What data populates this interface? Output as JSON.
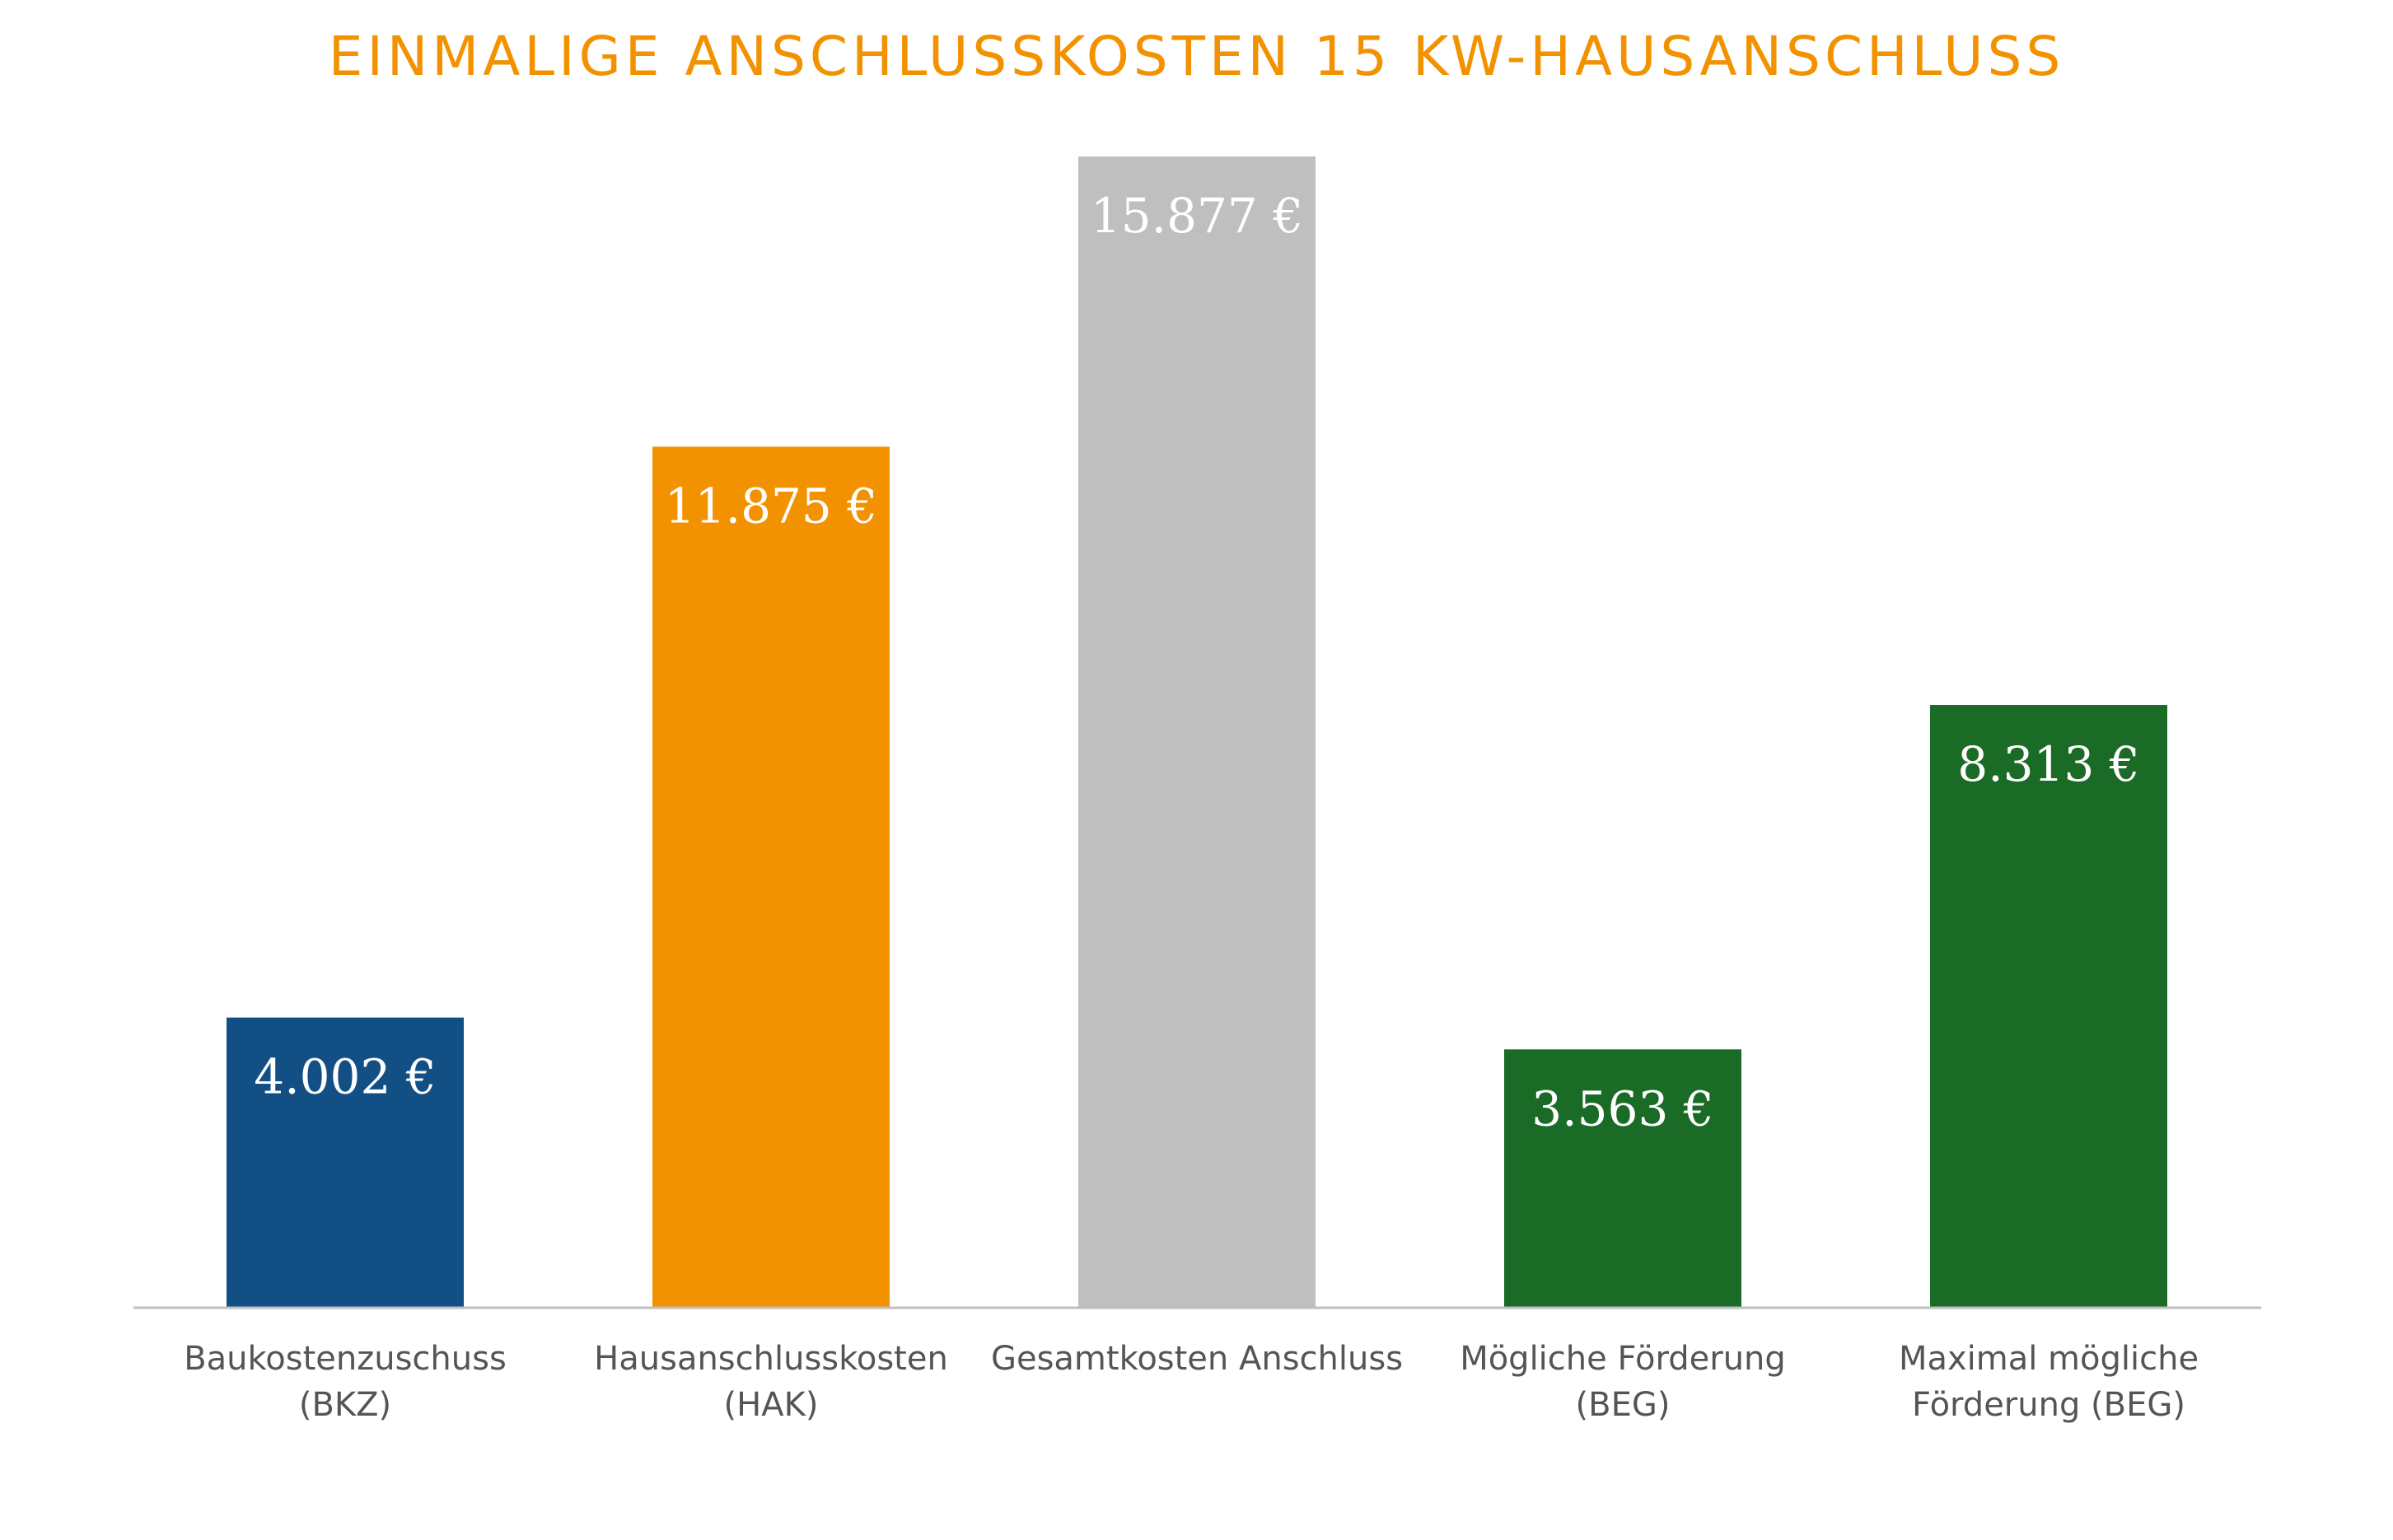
{
  "chart_data": {
    "type": "bar",
    "title": "EINMALIGE ANSCHLUSSKOSTEN 15 KW-HAUSANSCHLUSS",
    "xlabel": "",
    "ylabel": "",
    "ylim": [
      0,
      17000
    ],
    "grid": false,
    "legend": "none",
    "categories": [
      [
        "Baukostenzuschuss",
        "(BKZ)"
      ],
      [
        "Hausanschlusskosten",
        "(HAK)"
      ],
      [
        "Gesamtkosten Anschluss"
      ],
      [
        "Mögliche Förderung",
        "(BEG)"
      ],
      [
        "Maximal mögliche",
        "Förderung (BEG)"
      ]
    ],
    "values": [
      4002,
      11875,
      15877,
      3563,
      8313
    ],
    "value_labels": [
      "4.002 €",
      "11.875 €",
      "15.877 €",
      "3.563 €",
      "8.313 €"
    ],
    "colors": [
      "#124F84",
      "#F39200",
      "#BFBFBF",
      "#1A6B26",
      "#1A6B26"
    ]
  },
  "style": {
    "title_color": "#F39200",
    "axis_color": "#BFBFBF",
    "label_color": "#555555"
  }
}
